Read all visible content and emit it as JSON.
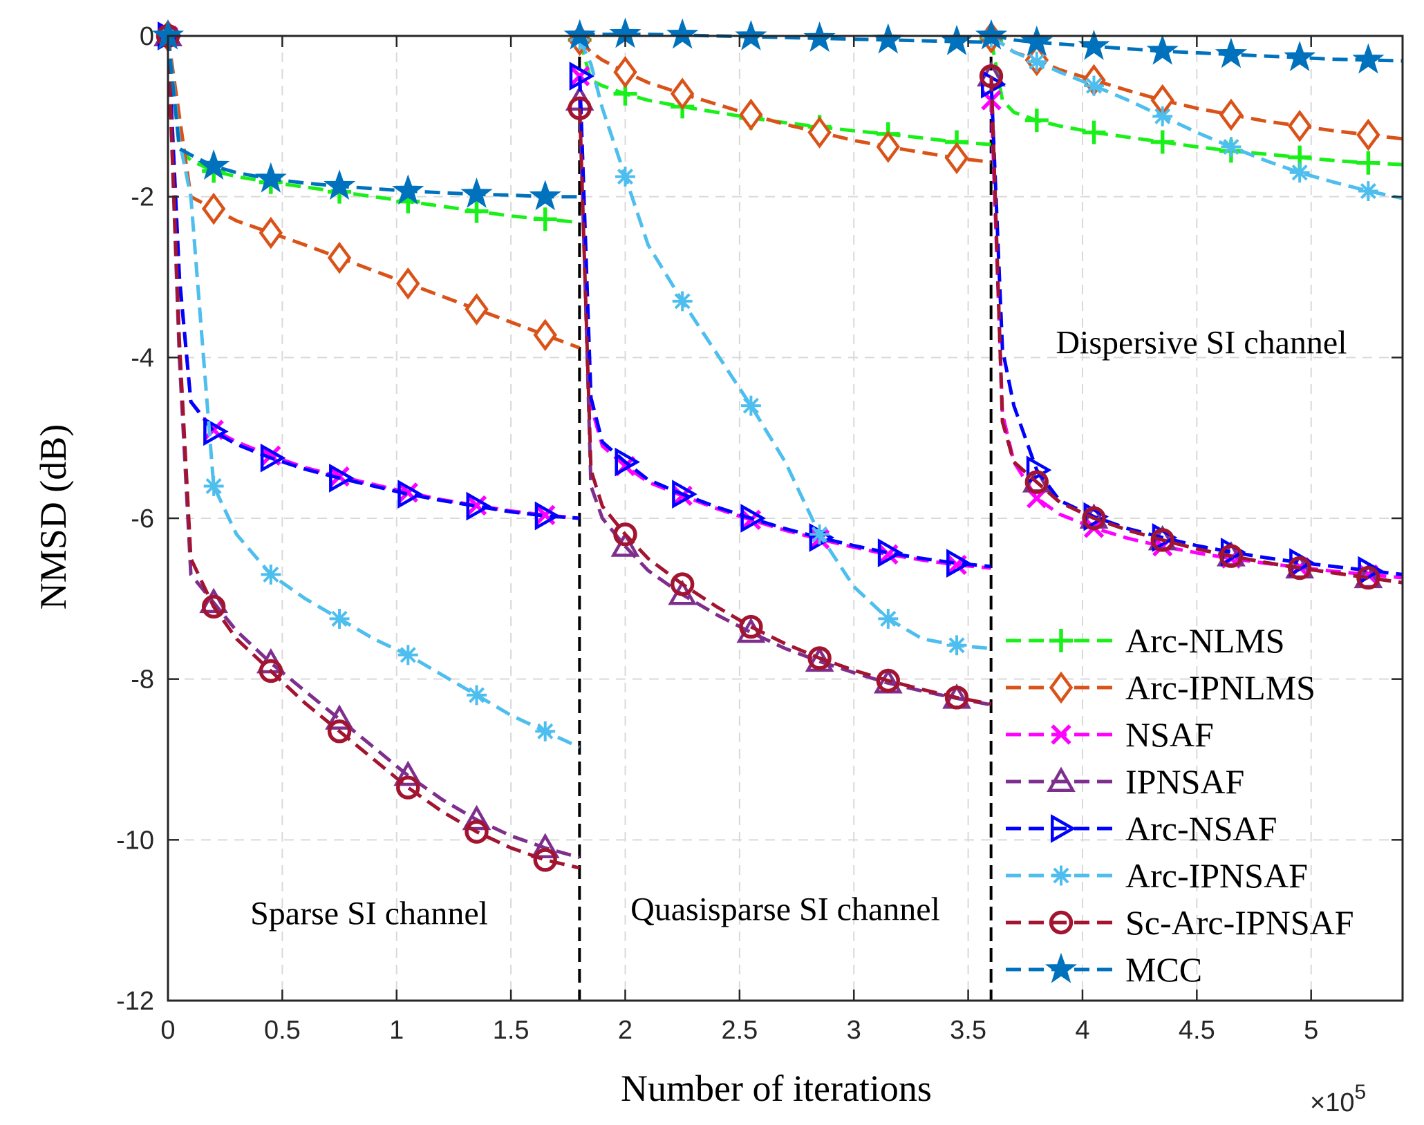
{
  "chart_data": {
    "type": "line",
    "title": "",
    "xlabel": "Number of iterations",
    "ylabel": "NMSD (dB)",
    "x_multiplier_base": "×10",
    "x_multiplier_exp": "5",
    "xlim": [
      0,
      5.4
    ],
    "ylim": [
      -12,
      0
    ],
    "xticks": [
      0,
      0.5,
      1,
      1.5,
      2,
      2.5,
      3,
      3.5,
      4,
      4.5,
      5
    ],
    "xtick_labels": [
      "0",
      "0.5",
      "1",
      "1.5",
      "2",
      "2.5",
      "3",
      "3.5",
      "4",
      "4.5",
      "5"
    ],
    "yticks": [
      0,
      -2,
      -4,
      -6,
      -8,
      -10,
      -12
    ],
    "ytick_labels": [
      "0",
      "-2",
      "-4",
      "-6",
      "-8",
      "-10",
      "-12"
    ],
    "grid": true,
    "legend_position": "bottom-right",
    "change_points": [
      1.8,
      3.6
    ],
    "annotations": [
      {
        "text": "Sparse SI channel",
        "x": 0.88,
        "y": -11.05
      },
      {
        "text": "Quasisparse SI channel",
        "x": 2.7,
        "y": -11.0
      },
      {
        "text": "Dispersive  SI channel",
        "x": 4.52,
        "y": -3.95
      }
    ],
    "x": [
      0,
      0.05,
      0.1,
      0.2,
      0.3,
      0.45,
      0.6,
      0.75,
      0.9,
      1.05,
      1.2,
      1.35,
      1.5,
      1.65,
      1.8,
      1.801,
      1.85,
      1.9,
      2.0,
      2.1,
      2.25,
      2.4,
      2.55,
      2.7,
      2.85,
      3.0,
      3.15,
      3.3,
      3.45,
      3.6,
      3.601,
      3.65,
      3.7,
      3.8,
      3.9,
      4.05,
      4.2,
      4.35,
      4.5,
      4.65,
      4.8,
      4.95,
      5.1,
      5.25,
      5.4
    ],
    "series": [
      {
        "name": "Arc-NLMS",
        "color": "#19f019",
        "marker": "plus",
        "values": [
          0,
          -1.4,
          -1.55,
          -1.68,
          -1.75,
          -1.82,
          -1.88,
          -1.94,
          -2.0,
          -2.06,
          -2.12,
          -2.18,
          -2.24,
          -2.28,
          -2.32,
          -0.05,
          -0.55,
          -0.62,
          -0.72,
          -0.8,
          -0.88,
          -0.95,
          -1.02,
          -1.08,
          -1.13,
          -1.18,
          -1.22,
          -1.27,
          -1.32,
          -1.35,
          -0.05,
          -0.8,
          -0.95,
          -1.05,
          -1.12,
          -1.2,
          -1.26,
          -1.32,
          -1.38,
          -1.43,
          -1.47,
          -1.51,
          -1.55,
          -1.58,
          -1.6
        ]
      },
      {
        "name": "Arc-IPNLMS",
        "color": "#d95319",
        "marker": "diamond",
        "values": [
          0,
          -1.0,
          -2.0,
          -2.15,
          -2.3,
          -2.45,
          -2.6,
          -2.76,
          -2.92,
          -3.08,
          -3.24,
          -3.4,
          -3.56,
          -3.72,
          -3.88,
          -0.05,
          -0.2,
          -0.3,
          -0.45,
          -0.58,
          -0.72,
          -0.85,
          -0.98,
          -1.1,
          -1.2,
          -1.3,
          -1.38,
          -1.45,
          -1.52,
          -1.57,
          -0.02,
          -0.1,
          -0.2,
          -0.3,
          -0.42,
          -0.55,
          -0.68,
          -0.8,
          -0.9,
          -0.98,
          -1.06,
          -1.12,
          -1.18,
          -1.23,
          -1.28
        ]
      },
      {
        "name": "NSAF",
        "color": "#ff00ff",
        "marker": "x",
        "values": [
          0,
          -3.0,
          -4.55,
          -4.9,
          -5.05,
          -5.22,
          -5.37,
          -5.48,
          -5.58,
          -5.68,
          -5.77,
          -5.84,
          -5.91,
          -5.96,
          -6.0,
          -0.5,
          -4.6,
          -5.1,
          -5.35,
          -5.55,
          -5.72,
          -5.88,
          -6.02,
          -6.15,
          -6.26,
          -6.36,
          -6.45,
          -6.52,
          -6.58,
          -6.62,
          -0.8,
          -4.7,
          -5.3,
          -5.75,
          -5.95,
          -6.12,
          -6.25,
          -6.35,
          -6.43,
          -6.5,
          -6.56,
          -6.61,
          -6.66,
          -6.7,
          -6.74
        ]
      },
      {
        "name": "IPNSAF",
        "color": "#7e2f8e",
        "marker": "triangle-up",
        "values": [
          0,
          -4.0,
          -6.7,
          -7.05,
          -7.4,
          -7.8,
          -8.15,
          -8.5,
          -8.85,
          -9.2,
          -9.5,
          -9.75,
          -9.95,
          -10.1,
          -10.22,
          -0.8,
          -5.6,
          -6.0,
          -6.35,
          -6.65,
          -6.95,
          -7.2,
          -7.42,
          -7.62,
          -7.78,
          -7.92,
          -8.05,
          -8.15,
          -8.24,
          -8.32,
          -0.5,
          -4.8,
          -5.3,
          -5.55,
          -5.8,
          -6.0,
          -6.15,
          -6.27,
          -6.38,
          -6.47,
          -6.55,
          -6.62,
          -6.68,
          -6.74,
          -6.8
        ]
      },
      {
        "name": "Arc-NSAF",
        "color": "#0000ff",
        "marker": "triangle-right",
        "values": [
          0,
          -3.0,
          -4.55,
          -4.92,
          -5.08,
          -5.25,
          -5.39,
          -5.5,
          -5.6,
          -5.7,
          -5.78,
          -5.85,
          -5.92,
          -5.97,
          -6.0,
          -0.5,
          -4.5,
          -5.05,
          -5.3,
          -5.52,
          -5.7,
          -5.86,
          -6.0,
          -6.13,
          -6.24,
          -6.34,
          -6.43,
          -6.5,
          -6.56,
          -6.6,
          -0.6,
          -3.9,
          -4.6,
          -5.4,
          -5.78,
          -5.98,
          -6.13,
          -6.24,
          -6.34,
          -6.42,
          -6.49,
          -6.55,
          -6.6,
          -6.65,
          -6.7
        ]
      },
      {
        "name": "Arc-IPNSAF",
        "color": "#4dbeee",
        "marker": "asterisk",
        "values": [
          0,
          -1.3,
          -2.0,
          -5.6,
          -6.2,
          -6.7,
          -7.0,
          -7.25,
          -7.5,
          -7.7,
          -7.95,
          -8.2,
          -8.45,
          -8.65,
          -8.85,
          -0.05,
          -0.35,
          -0.9,
          -1.75,
          -2.6,
          -3.3,
          -3.95,
          -4.6,
          -5.3,
          -6.2,
          -6.85,
          -7.25,
          -7.5,
          -7.58,
          -7.62,
          -0.02,
          -0.1,
          -0.2,
          -0.32,
          -0.45,
          -0.62,
          -0.8,
          -1.0,
          -1.2,
          -1.38,
          -1.55,
          -1.7,
          -1.82,
          -1.93,
          -2.02
        ]
      },
      {
        "name": "Sc-Arc-IPNSAF",
        "color": "#a2142f",
        "marker": "circle",
        "values": [
          0,
          -3.8,
          -6.5,
          -7.1,
          -7.5,
          -7.9,
          -8.3,
          -8.65,
          -9.0,
          -9.35,
          -9.65,
          -9.9,
          -10.1,
          -10.25,
          -10.35,
          -0.9,
          -5.4,
          -5.85,
          -6.2,
          -6.5,
          -6.82,
          -7.1,
          -7.35,
          -7.56,
          -7.74,
          -7.89,
          -8.02,
          -8.13,
          -8.23,
          -8.31,
          -0.5,
          -4.8,
          -5.3,
          -5.55,
          -5.8,
          -6.0,
          -6.15,
          -6.27,
          -6.38,
          -6.47,
          -6.55,
          -6.62,
          -6.68,
          -6.74,
          -6.8
        ]
      },
      {
        "name": "MCC",
        "color": "#0072bd",
        "marker": "star",
        "values": [
          0,
          -1.4,
          -1.48,
          -1.62,
          -1.7,
          -1.78,
          -1.83,
          -1.87,
          -1.9,
          -1.93,
          -1.95,
          -1.97,
          -1.98,
          -2.0,
          -2.0,
          0,
          0.02,
          0.02,
          0.02,
          0.02,
          0.01,
          0,
          -0.01,
          -0.02,
          -0.03,
          -0.04,
          -0.05,
          -0.06,
          -0.07,
          -0.08,
          0,
          -0.02,
          -0.05,
          -0.08,
          -0.1,
          -0.13,
          -0.16,
          -0.19,
          -0.21,
          -0.23,
          -0.25,
          -0.27,
          -0.29,
          -0.3,
          -0.31
        ]
      }
    ]
  }
}
